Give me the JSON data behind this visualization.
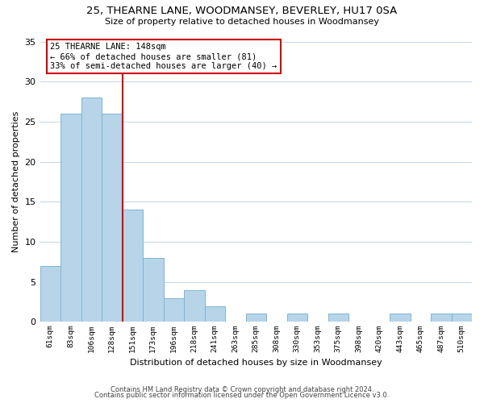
{
  "title": "25, THEARNE LANE, WOODMANSEY, BEVERLEY, HU17 0SA",
  "subtitle": "Size of property relative to detached houses in Woodmansey",
  "xlabel": "Distribution of detached houses by size in Woodmansey",
  "ylabel": "Number of detached properties",
  "bar_labels": [
    "61sqm",
    "83sqm",
    "106sqm",
    "128sqm",
    "151sqm",
    "173sqm",
    "196sqm",
    "218sqm",
    "241sqm",
    "263sqm",
    "285sqm",
    "308sqm",
    "330sqm",
    "353sqm",
    "375sqm",
    "398sqm",
    "420sqm",
    "443sqm",
    "465sqm",
    "487sqm",
    "510sqm"
  ],
  "bar_values": [
    7,
    26,
    28,
    26,
    14,
    8,
    3,
    4,
    2,
    0,
    1,
    0,
    1,
    0,
    1,
    0,
    0,
    1,
    0,
    1,
    1
  ],
  "bar_color": "#b8d4e8",
  "bar_edge_color": "#7ab8d4",
  "ref_line_x": 3.5,
  "ref_line_color": "#cc0000",
  "annotation_title": "25 THEARNE LANE: 148sqm",
  "annotation_line1": "← 66% of detached houses are smaller (81)",
  "annotation_line2": "33% of semi-detached houses are larger (40) →",
  "annotation_box_edge": "#cc0000",
  "annotation_box_fill": "#ffffff",
  "ylim": [
    0,
    35
  ],
  "yticks": [
    0,
    5,
    10,
    15,
    20,
    25,
    30,
    35
  ],
  "footer_line1": "Contains HM Land Registry data © Crown copyright and database right 2024.",
  "footer_line2": "Contains public sector information licensed under the Open Government Licence v3.0.",
  "bg_color": "#ffffff",
  "grid_color": "#c8d8e4"
}
